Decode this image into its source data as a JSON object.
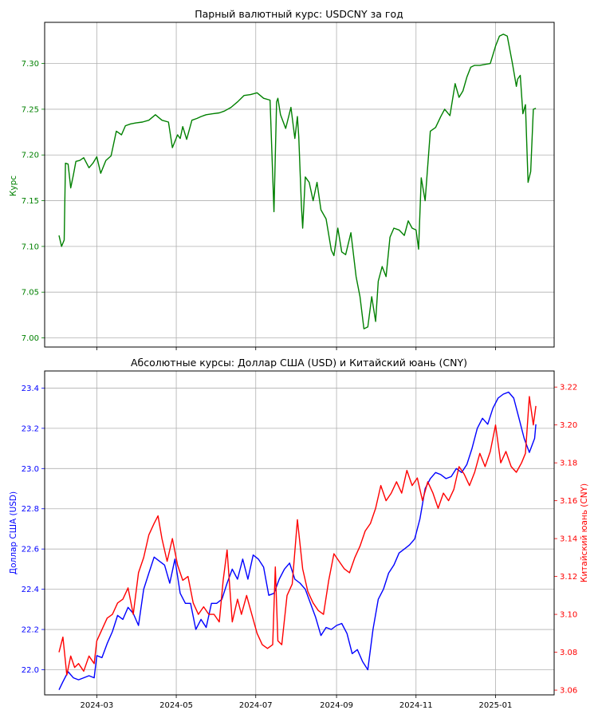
{
  "chart_data": [
    {
      "type": "line",
      "title": "Парный валютный курс: USDCNY за год",
      "xlabel": "",
      "ylabel": "Курс",
      "ylim": [
        6.99,
        7.345
      ],
      "yticks": [
        7.0,
        7.05,
        7.1,
        7.15,
        7.2,
        7.25,
        7.3
      ],
      "xlim": [
        "2024-01-21",
        "2025-02-15"
      ],
      "xticks": [
        "2024-03",
        "2024-05",
        "2024-07",
        "2024-09",
        "2024-11",
        "2025-01"
      ],
      "grid": true,
      "colors": {
        "line": "#008000",
        "axis_ticks": "#008000"
      },
      "series": [
        {
          "x": [
            "2024-02-01",
            "2024-02-03",
            "2024-02-05",
            "2024-02-06",
            "2024-02-08",
            "2024-02-10",
            "2024-02-12",
            "2024-02-14",
            "2024-02-17",
            "2024-02-20",
            "2024-02-24",
            "2024-02-27",
            "2024-03-01",
            "2024-03-04",
            "2024-03-08",
            "2024-03-12",
            "2024-03-16",
            "2024-03-20",
            "2024-03-23",
            "2024-03-27",
            "2024-03-31",
            "2024-04-05",
            "2024-04-10",
            "2024-04-15",
            "2024-04-20",
            "2024-04-25",
            "2024-04-28",
            "2024-05-02",
            "2024-05-04",
            "2024-05-06",
            "2024-05-09",
            "2024-05-13",
            "2024-05-17",
            "2024-05-20",
            "2024-05-24",
            "2024-05-29",
            "2024-06-03",
            "2024-06-07",
            "2024-06-12",
            "2024-06-17",
            "2024-06-22",
            "2024-06-27",
            "2024-07-02",
            "2024-07-07",
            "2024-07-12",
            "2024-07-15",
            "2024-07-17",
            "2024-07-18",
            "2024-07-20",
            "2024-07-24",
            "2024-07-28",
            "2024-07-31",
            "2024-08-02",
            "2024-08-03",
            "2024-08-05",
            "2024-08-06",
            "2024-08-08",
            "2024-08-11",
            "2024-08-14",
            "2024-08-17",
            "2024-08-20",
            "2024-08-24",
            "2024-08-28",
            "2024-08-30",
            "2024-09-02",
            "2024-09-05",
            "2024-09-08",
            "2024-09-12",
            "2024-09-16",
            "2024-09-19",
            "2024-09-22",
            "2024-09-25",
            "2024-09-28",
            "2024-10-01",
            "2024-10-03",
            "2024-10-06",
            "2024-10-09",
            "2024-10-12",
            "2024-10-15",
            "2024-10-19",
            "2024-10-23",
            "2024-10-26",
            "2024-10-29",
            "2024-11-01",
            "2024-11-03",
            "2024-11-05",
            "2024-11-08",
            "2024-11-12",
            "2024-11-16",
            "2024-11-20",
            "2024-11-23",
            "2024-11-27",
            "2024-12-01",
            "2024-12-04",
            "2024-12-07",
            "2024-12-10",
            "2024-12-13",
            "2024-12-16",
            "2024-12-20",
            "2024-12-24",
            "2024-12-28",
            "2025-01-01",
            "2025-01-04",
            "2025-01-07",
            "2025-01-10",
            "2025-01-14",
            "2025-01-17",
            "2025-01-18",
            "2025-01-20",
            "2025-01-22",
            "2025-01-24",
            "2025-01-26",
            "2025-01-28",
            "2025-01-30",
            "2025-02-01"
          ],
          "values": [
            7.112,
            7.1,
            7.107,
            7.191,
            7.19,
            7.164,
            7.178,
            7.193,
            7.194,
            7.197,
            7.186,
            7.191,
            7.198,
            7.18,
            7.194,
            7.199,
            7.226,
            7.222,
            7.232,
            7.234,
            7.235,
            7.236,
            7.238,
            7.244,
            7.238,
            7.236,
            7.208,
            7.222,
            7.218,
            7.231,
            7.217,
            7.238,
            7.24,
            7.242,
            7.244,
            7.245,
            7.246,
            7.248,
            7.252,
            7.258,
            7.265,
            7.266,
            7.268,
            7.262,
            7.26,
            7.138,
            7.258,
            7.262,
            7.244,
            7.229,
            7.252,
            7.218,
            7.242,
            7.22,
            7.145,
            7.12,
            7.176,
            7.17,
            7.15,
            7.17,
            7.14,
            7.13,
            7.096,
            7.09,
            7.12,
            7.094,
            7.091,
            7.115,
            7.067,
            7.045,
            7.01,
            7.012,
            7.045,
            7.018,
            7.062,
            7.078,
            7.067,
            7.11,
            7.12,
            7.118,
            7.112,
            7.128,
            7.12,
            7.118,
            7.097,
            7.175,
            7.15,
            7.226,
            7.23,
            7.242,
            7.25,
            7.243,
            7.278,
            7.263,
            7.27,
            7.285,
            7.296,
            7.298,
            7.298,
            7.299,
            7.3,
            7.319,
            7.33,
            7.332,
            7.33,
            7.3,
            7.275,
            7.283,
            7.287,
            7.245,
            7.255,
            7.17,
            7.182,
            7.25,
            7.251
          ]
        }
      ]
    },
    {
      "type": "line",
      "title": "Абсолютные курсы: Доллар США (USD) и Китайский юань (CNY)",
      "xlabel": "",
      "ylabel_left": "Доллар США (USD)",
      "ylabel_right": "Китайский юань (CNY)",
      "ylim_left": [
        21.875,
        23.485
      ],
      "ylim_right": [
        3.0575,
        3.2285
      ],
      "yticks_left": [
        22.0,
        22.2,
        22.4,
        22.6,
        22.8,
        23.0,
        23.2,
        23.4
      ],
      "yticks_right": [
        3.06,
        3.08,
        3.1,
        3.12,
        3.14,
        3.16,
        3.18,
        3.2,
        3.22
      ],
      "xlim": [
        "2024-01-21",
        "2025-02-15"
      ],
      "xticks": [
        "2024-03",
        "2024-05",
        "2024-07",
        "2024-09",
        "2024-11",
        "2025-01"
      ],
      "grid": true,
      "series": [
        {
          "name": "Доллар США (USD)",
          "axis": "left",
          "color": "#0000ff",
          "x": [
            "2024-02-01",
            "2024-02-04",
            "2024-02-08",
            "2024-02-12",
            "2024-02-16",
            "2024-02-20",
            "2024-02-24",
            "2024-02-28",
            "2024-03-01",
            "2024-03-05",
            "2024-03-09",
            "2024-03-13",
            "2024-03-17",
            "2024-03-21",
            "2024-03-25",
            "2024-03-29",
            "2024-04-02",
            "2024-04-06",
            "2024-04-10",
            "2024-04-14",
            "2024-04-18",
            "2024-04-22",
            "2024-04-26",
            "2024-04-30",
            "2024-05-04",
            "2024-05-08",
            "2024-05-12",
            "2024-05-16",
            "2024-05-20",
            "2024-05-24",
            "2024-05-28",
            "2024-06-01",
            "2024-06-05",
            "2024-06-09",
            "2024-06-13",
            "2024-06-17",
            "2024-06-21",
            "2024-06-25",
            "2024-06-29",
            "2024-07-03",
            "2024-07-07",
            "2024-07-11",
            "2024-07-15",
            "2024-07-19",
            "2024-07-23",
            "2024-07-27",
            "2024-07-31",
            "2024-08-04",
            "2024-08-08",
            "2024-08-12",
            "2024-08-16",
            "2024-08-20",
            "2024-08-24",
            "2024-08-28",
            "2024-09-01",
            "2024-09-05",
            "2024-09-09",
            "2024-09-13",
            "2024-09-17",
            "2024-09-21",
            "2024-09-25",
            "2024-09-29",
            "2024-10-03",
            "2024-10-07",
            "2024-10-11",
            "2024-10-15",
            "2024-10-19",
            "2024-10-23",
            "2024-10-27",
            "2024-10-31",
            "2024-11-04",
            "2024-11-08",
            "2024-11-12",
            "2024-11-16",
            "2024-11-20",
            "2024-11-24",
            "2024-11-28",
            "2024-12-02",
            "2024-12-06",
            "2024-12-10",
            "2024-12-14",
            "2024-12-18",
            "2024-12-22",
            "2024-12-26",
            "2024-12-30",
            "2025-01-03",
            "2025-01-07",
            "2025-01-11",
            "2025-01-15",
            "2025-01-19",
            "2025-01-23",
            "2025-01-27",
            "2025-01-31",
            "2025-02-01"
          ],
          "values": [
            21.9,
            21.94,
            21.99,
            21.96,
            21.95,
            21.96,
            21.97,
            21.96,
            22.07,
            22.06,
            22.13,
            22.19,
            22.27,
            22.25,
            22.31,
            22.28,
            22.22,
            22.4,
            22.48,
            22.56,
            22.54,
            22.52,
            22.43,
            22.55,
            22.38,
            22.33,
            22.33,
            22.2,
            22.25,
            22.21,
            22.33,
            22.33,
            22.35,
            22.43,
            22.5,
            22.45,
            22.55,
            22.45,
            22.57,
            22.55,
            22.51,
            22.37,
            22.38,
            22.45,
            22.5,
            22.53,
            22.45,
            22.43,
            22.4,
            22.33,
            22.26,
            22.17,
            22.21,
            22.2,
            22.22,
            22.23,
            22.18,
            22.08,
            22.1,
            22.04,
            22.0,
            22.2,
            22.35,
            22.4,
            22.48,
            22.52,
            22.58,
            22.6,
            22.62,
            22.65,
            22.75,
            22.9,
            22.95,
            22.98,
            22.97,
            22.95,
            22.96,
            23.0,
            22.98,
            23.02,
            23.1,
            23.2,
            23.25,
            23.22,
            23.3,
            23.35,
            23.37,
            23.38,
            23.35,
            23.25,
            23.15,
            23.08,
            23.15,
            23.22
          ]
        },
        {
          "name": "Китайский юань (CNY)",
          "axis": "right",
          "color": "#ff0000",
          "x": [
            "2024-02-01",
            "2024-02-04",
            "2024-02-07",
            "2024-02-10",
            "2024-02-13",
            "2024-02-16",
            "2024-02-20",
            "2024-02-24",
            "2024-02-28",
            "2024-03-01",
            "2024-03-05",
            "2024-03-09",
            "2024-03-13",
            "2024-03-17",
            "2024-03-21",
            "2024-03-25",
            "2024-03-29",
            "2024-04-02",
            "2024-04-06",
            "2024-04-10",
            "2024-04-14",
            "2024-04-17",
            "2024-04-20",
            "2024-04-24",
            "2024-04-28",
            "2024-05-02",
            "2024-05-06",
            "2024-05-10",
            "2024-05-14",
            "2024-05-18",
            "2024-05-22",
            "2024-05-26",
            "2024-05-30",
            "2024-06-03",
            "2024-06-06",
            "2024-06-09",
            "2024-06-13",
            "2024-06-17",
            "2024-06-20",
            "2024-06-24",
            "2024-06-28",
            "2024-07-02",
            "2024-07-06",
            "2024-07-10",
            "2024-07-14",
            "2024-07-16",
            "2024-07-18",
            "2024-07-21",
            "2024-07-25",
            "2024-07-29",
            "2024-08-02",
            "2024-08-06",
            "2024-08-10",
            "2024-08-14",
            "2024-08-18",
            "2024-08-22",
            "2024-08-26",
            "2024-08-30",
            "2024-09-03",
            "2024-09-07",
            "2024-09-11",
            "2024-09-15",
            "2024-09-19",
            "2024-09-23",
            "2024-09-27",
            "2024-10-01",
            "2024-10-05",
            "2024-10-09",
            "2024-10-13",
            "2024-10-17",
            "2024-10-21",
            "2024-10-25",
            "2024-10-29",
            "2024-11-02",
            "2024-11-06",
            "2024-11-10",
            "2024-11-14",
            "2024-11-18",
            "2024-11-22",
            "2024-11-26",
            "2024-11-30",
            "2024-12-04",
            "2024-12-08",
            "2024-12-12",
            "2024-12-16",
            "2024-12-20",
            "2024-12-24",
            "2024-12-28",
            "2025-01-01",
            "2025-01-05",
            "2025-01-09",
            "2025-01-13",
            "2025-01-17",
            "2025-01-21",
            "2025-01-24",
            "2025-01-27",
            "2025-01-30",
            "2025-02-01"
          ],
          "values": [
            3.08,
            3.088,
            3.068,
            3.078,
            3.072,
            3.074,
            3.07,
            3.078,
            3.074,
            3.086,
            3.092,
            3.098,
            3.1,
            3.106,
            3.108,
            3.114,
            3.1,
            3.122,
            3.13,
            3.142,
            3.148,
            3.152,
            3.14,
            3.128,
            3.14,
            3.126,
            3.118,
            3.12,
            3.106,
            3.1,
            3.104,
            3.1,
            3.1,
            3.096,
            3.118,
            3.134,
            3.096,
            3.108,
            3.1,
            3.11,
            3.1,
            3.09,
            3.084,
            3.082,
            3.084,
            3.125,
            3.086,
            3.084,
            3.11,
            3.116,
            3.15,
            3.124,
            3.112,
            3.106,
            3.102,
            3.1,
            3.118,
            3.132,
            3.128,
            3.124,
            3.122,
            3.13,
            3.136,
            3.144,
            3.148,
            3.156,
            3.168,
            3.16,
            3.164,
            3.17,
            3.164,
            3.176,
            3.168,
            3.172,
            3.16,
            3.17,
            3.164,
            3.156,
            3.164,
            3.16,
            3.166,
            3.178,
            3.174,
            3.168,
            3.175,
            3.185,
            3.178,
            3.186,
            3.2,
            3.18,
            3.186,
            3.178,
            3.175,
            3.18,
            3.185,
            3.215,
            3.2,
            3.21
          ]
        }
      ]
    }
  ]
}
